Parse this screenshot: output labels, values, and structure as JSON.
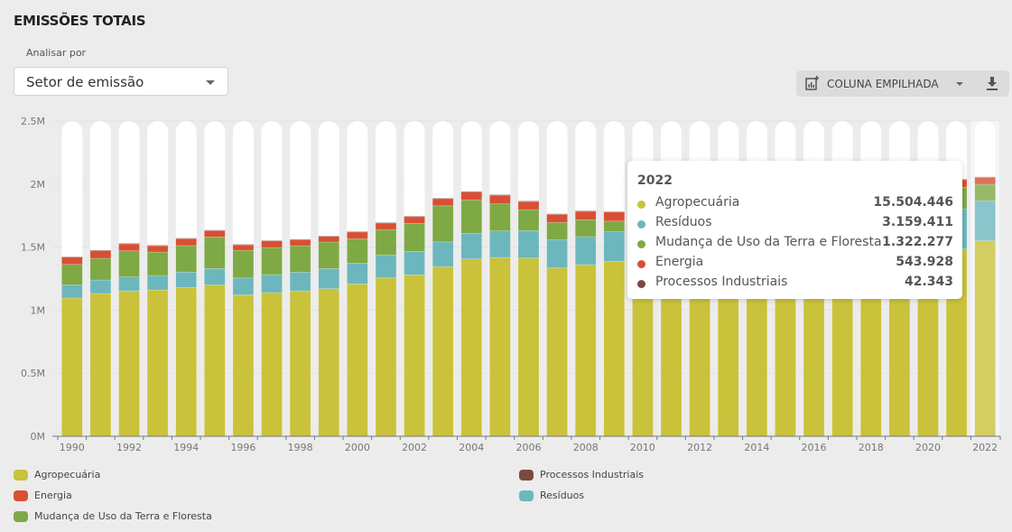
{
  "header": {
    "title": "EMISSÕES TOTAIS",
    "analyze_label": "Analisar por",
    "analyze_selected": "Setor de emissão"
  },
  "toolbar": {
    "chart_type_icon": "chart-add-icon",
    "chart_type_label": "COLUNA EMPILHADA",
    "download_icon": "download-icon"
  },
  "chart_data": {
    "type": "bar",
    "stacked": true,
    "title": "EMISSÕES TOTAIS",
    "xlabel": "",
    "ylabel": "",
    "ylim": [
      0,
      2500000
    ],
    "y_ticks": [
      "0M",
      "0.5M",
      "1M",
      "1.5M",
      "2M",
      "2.5M"
    ],
    "x_tick_labels": [
      "1990",
      "1992",
      "1994",
      "1996",
      "1998",
      "2000",
      "2002",
      "2004",
      "2006",
      "2008",
      "2010",
      "2012",
      "2014",
      "2016",
      "2018",
      "2020",
      "2022"
    ],
    "grid": true,
    "legend_position": "bottom",
    "highlighted_category": "2022",
    "categories": [
      "1990",
      "1991",
      "1992",
      "1993",
      "1994",
      "1995",
      "1996",
      "1997",
      "1998",
      "1999",
      "2000",
      "2001",
      "2002",
      "2003",
      "2004",
      "2005",
      "2006",
      "2007",
      "2008",
      "2009",
      "2010",
      "2011",
      "2012",
      "2013",
      "2014",
      "2015",
      "2016",
      "2017",
      "2018",
      "2019",
      "2020",
      "2021",
      "2022"
    ],
    "series": [
      {
        "name": "Agropecuária",
        "color": "#c9c23a",
        "values": [
          1096000,
          1132000,
          1153000,
          1160000,
          1180000,
          1201000,
          1122000,
          1139000,
          1153000,
          1170000,
          1208000,
          1256000,
          1280000,
          1345000,
          1406000,
          1418000,
          1413000,
          1335000,
          1361000,
          1388000,
          1400000,
          1410000,
          1420000,
          1425000,
          1430000,
          1440000,
          1445000,
          1450000,
          1455000,
          1460000,
          1470000,
          1485000,
          1550445
        ]
      },
      {
        "name": "Resíduos",
        "color": "#6cb7bd",
        "values": [
          105000,
          107000,
          110000,
          115000,
          122000,
          129000,
          133000,
          143000,
          148000,
          160000,
          165000,
          182000,
          186000,
          196000,
          203000,
          210000,
          218000,
          222000,
          222000,
          234000,
          240000,
          245000,
          250000,
          258000,
          265000,
          272000,
          280000,
          288000,
          295000,
          300000,
          308000,
          315000,
          315941
        ]
      },
      {
        "name": "Mudança de Uso da Terra e Floresta",
        "color": "#7ea945",
        "values": [
          162000,
          172000,
          208000,
          186000,
          210000,
          251000,
          220000,
          215000,
          210000,
          210000,
          193000,
          201000,
          222000,
          287000,
          265000,
          215000,
          167000,
          139000,
          134000,
          84000,
          120000,
          130000,
          125000,
          140000,
          150000,
          145000,
          140000,
          150000,
          160000,
          165000,
          170000,
          175000,
          132228
        ]
      },
      {
        "name": "Energia",
        "color": "#d94f33",
        "values": [
          57000,
          61000,
          55000,
          50000,
          55000,
          50000,
          43000,
          52000,
          48000,
          45000,
          54000,
          52000,
          54000,
          57000,
          64000,
          69000,
          64000,
          64000,
          67000,
          72000,
          62000,
          60000,
          58000,
          57000,
          56000,
          56000,
          55000,
          55000,
          56000,
          57000,
          58000,
          60000,
          54393
        ]
      },
      {
        "name": "Processos Industriais",
        "color": "#7a4a3f",
        "values": [
          4000,
          4000,
          4000,
          4000,
          4000,
          4000,
          4000,
          4000,
          4000,
          4000,
          4000,
          4000,
          4000,
          4000,
          4000,
          4000,
          4000,
          4000,
          4000,
          4000,
          4000,
          4000,
          4000,
          4000,
          4000,
          4000,
          4000,
          4000,
          4000,
          4000,
          4000,
          4000,
          4234
        ]
      }
    ]
  },
  "tooltip": {
    "year": "2022",
    "rows": [
      {
        "label": "Agropecuária",
        "value": "15.504.446",
        "color": "#c9c23a"
      },
      {
        "label": "Resíduos",
        "value": "3.159.411",
        "color": "#6cb7bd"
      },
      {
        "label": "Mudança de Uso da Terra e Floresta",
        "value": "1.322.277",
        "color": "#7ea945"
      },
      {
        "label": "Energia",
        "value": "543.928",
        "color": "#d94f33"
      },
      {
        "label": "Processos Industriais",
        "value": "42.343",
        "color": "#7a4a3f"
      }
    ]
  },
  "legend": [
    {
      "label": "Agropecuária",
      "color": "#c9c23a"
    },
    {
      "label": "Energia",
      "color": "#d94f33"
    },
    {
      "label": "Mudança de Uso da Terra e Floresta",
      "color": "#7ea945"
    },
    {
      "label": "Processos Industriais",
      "color": "#7a4a3f"
    },
    {
      "label": "Resíduos",
      "color": "#6cb7bd"
    }
  ]
}
